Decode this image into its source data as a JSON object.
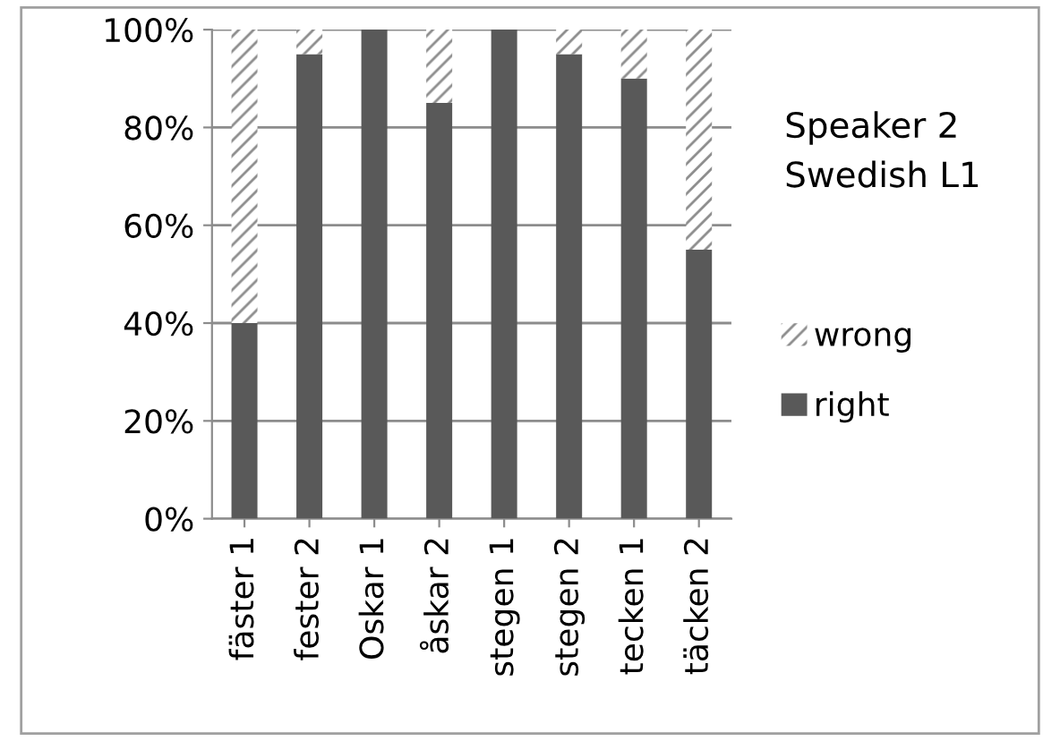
{
  "chart_data": {
    "type": "bar",
    "stacked": true,
    "title": "Speaker 2\nSwedish L1",
    "categories": [
      "fäster 1",
      "fester 2",
      "Oskar 1",
      "åskar 2",
      "stegen 1",
      "stegen 2",
      "tecken 1",
      "täcken 2"
    ],
    "series": [
      {
        "name": "right",
        "color": "#595959",
        "values": [
          40,
          95,
          100,
          85,
          100,
          95,
          90,
          55
        ]
      },
      {
        "name": "wrong",
        "color": "#ffffff",
        "values": [
          60,
          5,
          0,
          15,
          0,
          5,
          10,
          45
        ]
      }
    ],
    "ylim": [
      0,
      100
    ],
    "yticks": [
      {
        "value": 0,
        "label": "0%"
      },
      {
        "value": 20,
        "label": "20%"
      },
      {
        "value": 40,
        "label": "40%"
      },
      {
        "value": 60,
        "label": "60%"
      },
      {
        "value": 80,
        "label": "80%"
      },
      {
        "value": 100,
        "label": "100%"
      }
    ],
    "grid": "y",
    "legend": "right"
  }
}
